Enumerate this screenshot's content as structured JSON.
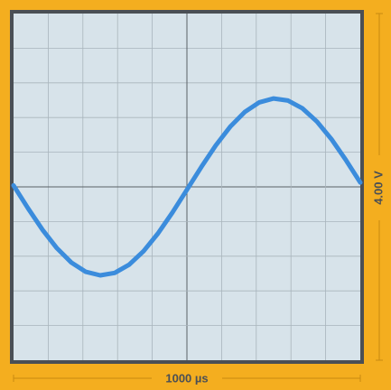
{
  "timebase": "1000 µs",
  "voltage_scale": "4.00 V"
}
